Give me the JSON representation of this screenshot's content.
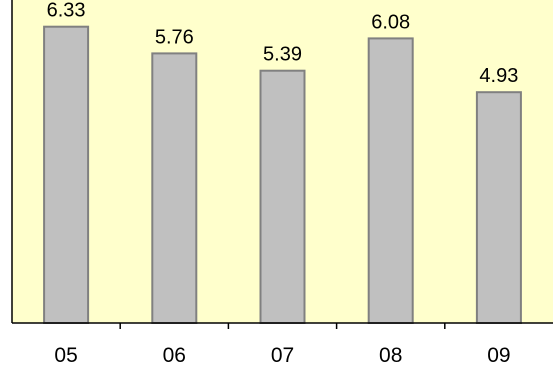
{
  "chart_data": {
    "type": "bar",
    "categories": [
      "05",
      "06",
      "07",
      "08",
      "09"
    ],
    "values": [
      6.33,
      5.76,
      5.39,
      6.08,
      4.93
    ],
    "data_labels": [
      "6.33",
      "5.76",
      "5.39",
      "6.08",
      "4.93"
    ],
    "ylim": [
      0,
      6.9
    ],
    "grid": false,
    "legend": "none",
    "colors": {
      "plot_background": "#ffffcc",
      "bar_fill": "#c0c0c0",
      "bar_stroke": "#808080"
    }
  }
}
